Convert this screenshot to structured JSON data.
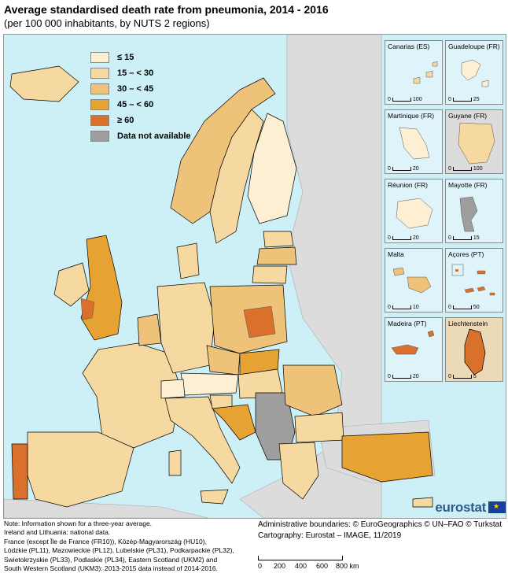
{
  "title": "Average standardised death rate from pneumonia, 2014 - 2016",
  "subtitle": "(per 100 000 inhabitants, by NUTS 2 regions)",
  "legend": [
    {
      "label": "≤ 15",
      "color": "#fcefd3"
    },
    {
      "label": "15 – < 30",
      "color": "#f6d9a0"
    },
    {
      "label": "30 – < 45",
      "color": "#efc279"
    },
    {
      "label": "45 – < 60",
      "color": "#e6a334"
    },
    {
      "label": "≥ 60",
      "color": "#d9712c"
    },
    {
      "label": "Data not available",
      "color": "#9e9e9e"
    }
  ],
  "colors": {
    "sea": "#cdeff6",
    "non_eu": "#dcdcdc",
    "border_national": "#000000",
    "border_regional": "#8a8a8a"
  },
  "insets": [
    {
      "title": "Canarias (ES)",
      "scale_min": "0",
      "scale_max": "100"
    },
    {
      "title": "Guadeloupe (FR)",
      "scale_min": "0",
      "scale_max": "25"
    },
    {
      "title": "Martinique (FR)",
      "scale_min": "0",
      "scale_max": "20"
    },
    {
      "title": "Guyane (FR)",
      "scale_min": "0",
      "scale_max": "100"
    },
    {
      "title": "Réunion (FR)",
      "scale_min": "0",
      "scale_max": "20"
    },
    {
      "title": "Mayotte (FR)",
      "scale_min": "0",
      "scale_max": "15"
    },
    {
      "title": "Malta",
      "scale_min": "0",
      "scale_max": "10"
    },
    {
      "title": "Açores (PT)",
      "scale_min": "0",
      "scale_max": "50"
    },
    {
      "title": "Madeira (PT)",
      "scale_min": "0",
      "scale_max": "20"
    },
    {
      "title": "Liechtenstein",
      "scale_min": "0",
      "scale_max": "5"
    }
  ],
  "logo": {
    "text": "eurostat"
  },
  "notes": [
    "Note: Information shown for a three-year average.",
    "Ireland and Lithuania: national data.",
    "France (except Île de France (FR10)), Közép-Magyarország (HU10),",
    "Lódzkie (PL11), Mazowieckie (PL12), Lubelskie (PL31), Podkarpackie (PL32),",
    "Swietokrzyskie (PL33), Podlaskie (PL34), Eastern Scotland (UKM2) and",
    "South Western Scotland (UKM3): 2013-2015 data instead of 2014-2016."
  ],
  "credits": {
    "boundaries": "Administrative boundaries: © EuroGeographics © UN–FAO © Turkstat",
    "cartography": "Cartography: Eurostat – IMAGE, 11/2019"
  },
  "scalebar": {
    "labels": [
      "0",
      "200",
      "400",
      "600",
      "800 km"
    ]
  }
}
